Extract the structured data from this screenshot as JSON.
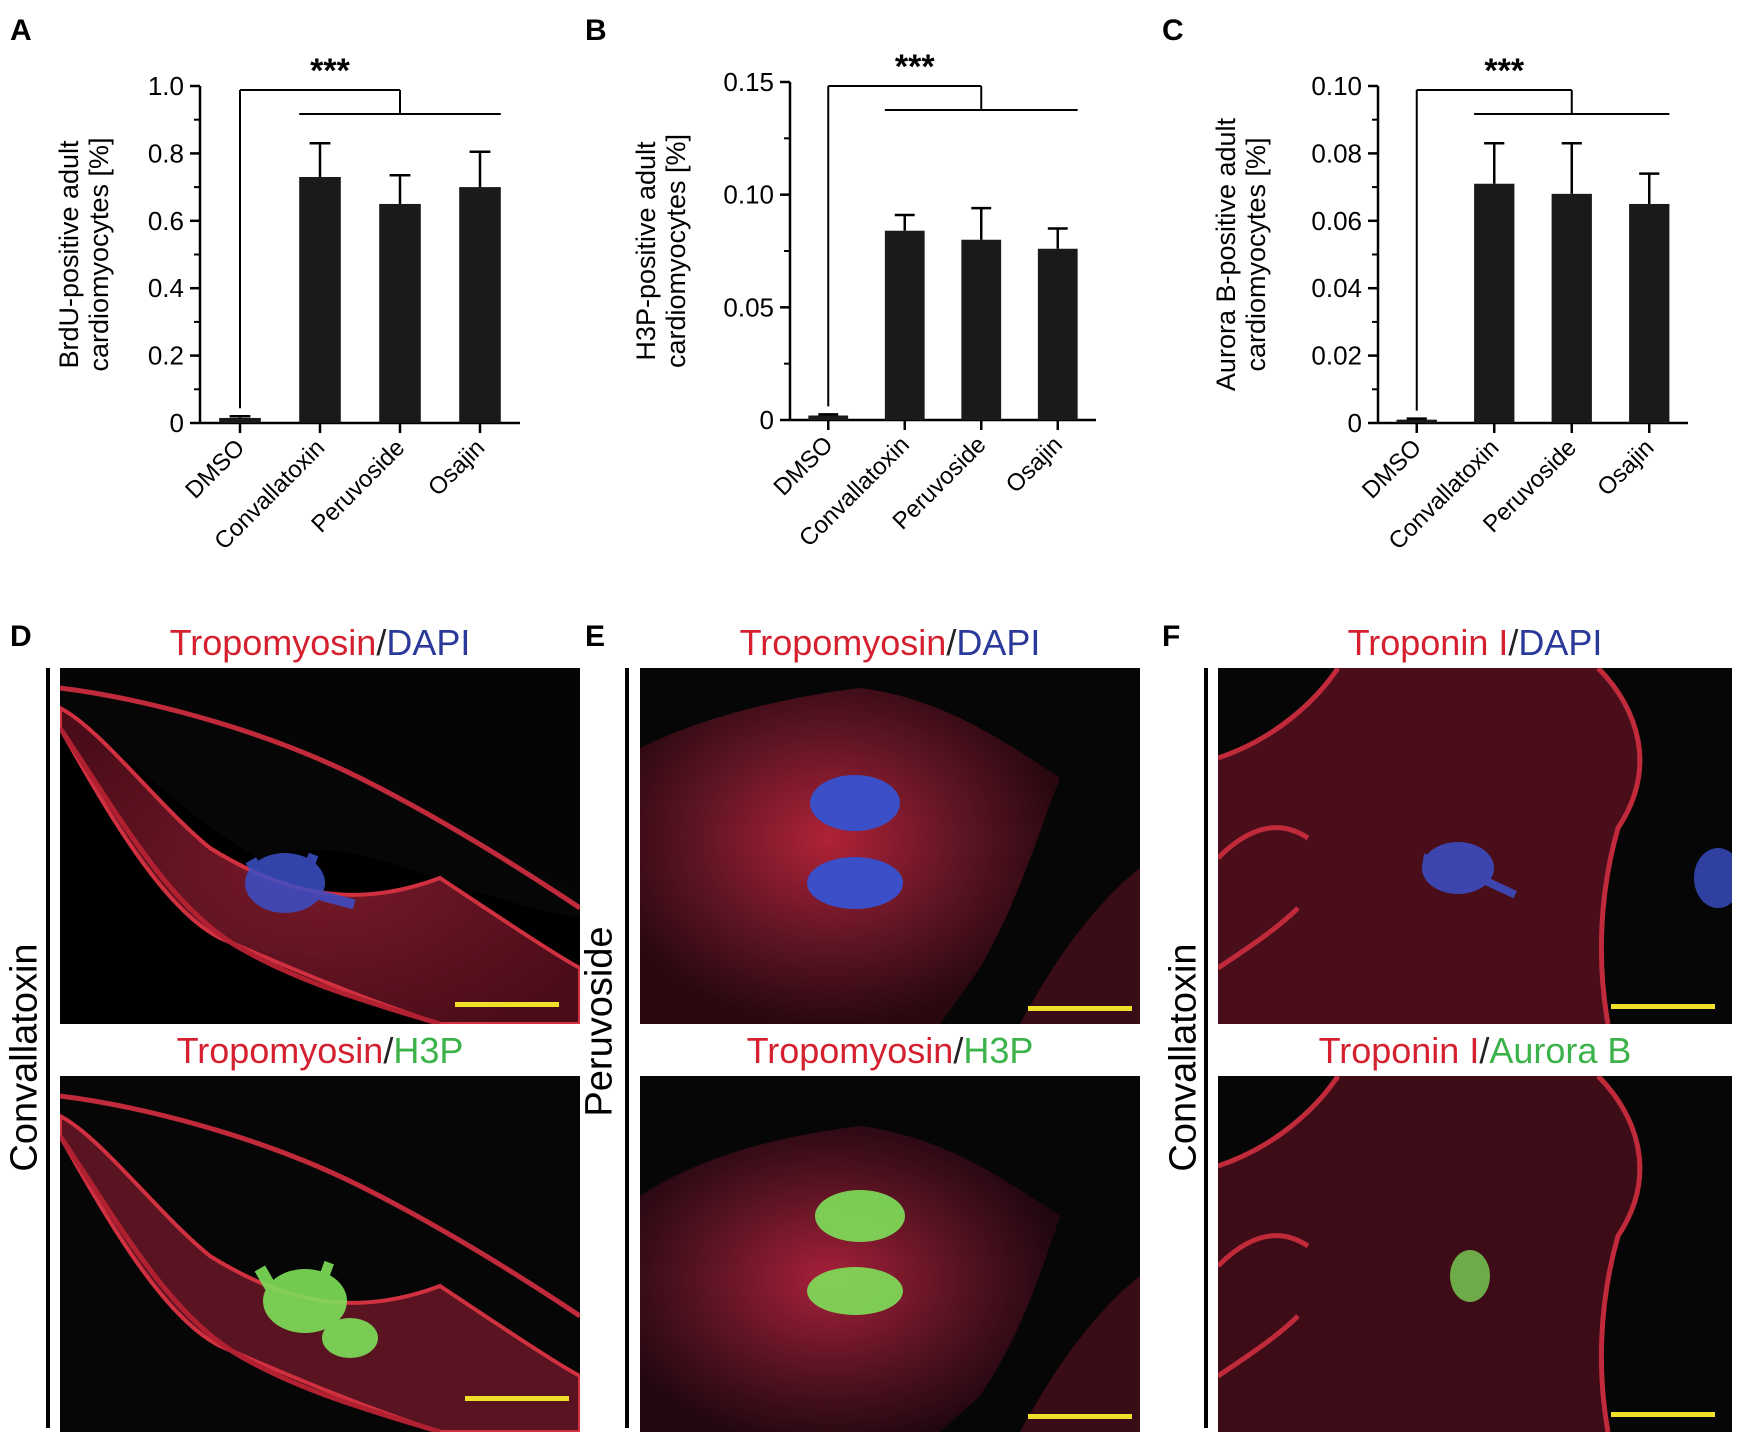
{
  "panels": {
    "A": "A",
    "B": "B",
    "C": "C",
    "D": "D",
    "E": "E",
    "F": "F"
  },
  "chart_data": [
    {
      "type": "bar",
      "panel": "A",
      "categories": [
        "DMSO",
        "Convallatoxin",
        "Peruvoside",
        "Osajin"
      ],
      "values": [
        0.015,
        0.73,
        0.65,
        0.7
      ],
      "errors": [
        0.005,
        0.1,
        0.085,
        0.105
      ],
      "ylabel": [
        "BrdU-positive adult",
        "cardiomyocytes [%]"
      ],
      "ylim": [
        0,
        1.0
      ],
      "yticks": [
        0,
        0.2,
        0.4,
        0.6,
        0.8,
        1.0
      ],
      "ytick_labels": [
        "0",
        "0.2",
        "0.4",
        "0.6",
        "0.8",
        "1.0"
      ],
      "significance": "***",
      "bar_color": "#1a1a1a"
    },
    {
      "type": "bar",
      "panel": "B",
      "categories": [
        "DMSO",
        "Convallatoxin",
        "Peruvoside",
        "Osajin"
      ],
      "values": [
        0.002,
        0.084,
        0.08,
        0.076
      ],
      "errors": [
        0.0005,
        0.007,
        0.014,
        0.009
      ],
      "ylabel": [
        "H3P-positive adult",
        "cardiomyocytes [%]"
      ],
      "ylim": [
        0,
        0.15
      ],
      "yticks": [
        0,
        0.05,
        0.1,
        0.15
      ],
      "ytick_labels": [
        "0",
        "0.05",
        "0.10",
        "0.15"
      ],
      "significance": "***",
      "bar_color": "#1a1a1a"
    },
    {
      "type": "bar",
      "panel": "C",
      "categories": [
        "DMSO",
        "Convallatoxin",
        "Peruvoside",
        "Osajin"
      ],
      "values": [
        0.001,
        0.071,
        0.068,
        0.065
      ],
      "errors": [
        0.0003,
        0.012,
        0.015,
        0.009
      ],
      "ylabel": [
        "Aurora B-positive adult",
        "cardiomyocytes [%]"
      ],
      "ylim": [
        0,
        0.1
      ],
      "yticks": [
        0,
        0.02,
        0.04,
        0.06,
        0.08,
        0.1
      ],
      "ytick_labels": [
        "0",
        "0.02",
        "0.04",
        "0.06",
        "0.08",
        "0.10"
      ],
      "significance": "***",
      "bar_color": "#1a1a1a"
    }
  ],
  "micrographs": {
    "D": {
      "side_label": "Convallatoxin",
      "top": {
        "red": "Tropomyosin",
        "sep": "/",
        "other": "DAPI"
      },
      "bottom": {
        "red": "Tropomyosin",
        "sep": "/",
        "other": "H3P"
      }
    },
    "E": {
      "side_label": "Peruvoside",
      "top": {
        "red": "Tropomyosin",
        "sep": "/",
        "other": "DAPI"
      },
      "bottom": {
        "red": "Tropomyosin",
        "sep": "/",
        "other": "H3P"
      }
    },
    "F": {
      "side_label": "Convallatoxin",
      "top": {
        "red": "Troponin I",
        "sep": "/",
        "other": "DAPI"
      },
      "bottom": {
        "red": "Troponin I",
        "sep": "/",
        "other": "Aurora B"
      }
    }
  },
  "colors": {
    "scale_bar": "#f1e02a",
    "cell_red": "#c8283a",
    "nucleus_blue": "#3b4fc8",
    "stain_green": "#7ee05a"
  }
}
